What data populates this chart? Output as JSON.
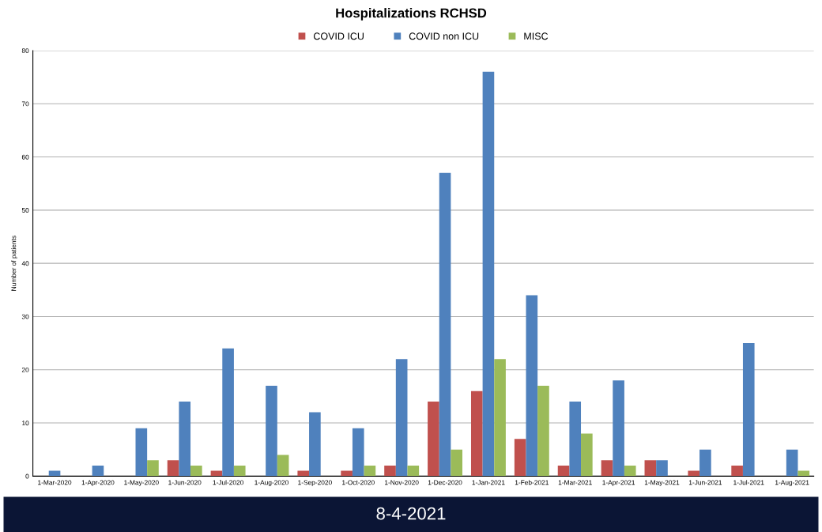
{
  "chart_data": {
    "type": "bar",
    "title": "Hospitalizations RCHSD",
    "ylabel": "Number of patients",
    "categories": [
      "1-Mar-2020",
      "1-Apr-2020",
      "1-May-2020",
      "1-Jun-2020",
      "1-Jul-2020",
      "1-Aug-2020",
      "1-Sep-2020",
      "1-Oct-2020",
      "1-Nov-2020",
      "1-Dec-2020",
      "1-Jan-2021",
      "1-Feb-2021",
      "1-Mar-2021",
      "1-Apr-2021",
      "1-May-2021",
      "1-Jun-2021",
      "1-Jul-2021",
      "1-Aug-2021"
    ],
    "series": [
      {
        "name": "COVID ICU",
        "color": "#c0504d",
        "values": [
          0,
          0,
          0,
          3,
          1,
          0,
          1,
          1,
          2,
          14,
          16,
          7,
          2,
          3,
          3,
          1,
          2,
          0
        ]
      },
      {
        "name": "COVID non ICU",
        "color": "#4f81bd",
        "values": [
          1,
          2,
          9,
          14,
          24,
          17,
          12,
          9,
          22,
          57,
          76,
          34,
          14,
          18,
          3,
          5,
          25,
          5
        ]
      },
      {
        "name": "MISC",
        "color": "#9bbb59",
        "values": [
          0,
          0,
          3,
          2,
          2,
          4,
          0,
          2,
          2,
          5,
          22,
          17,
          8,
          2,
          0,
          0,
          0,
          1
        ]
      }
    ],
    "ylim": [
      0,
      80
    ],
    "yticks": [
      0,
      10,
      20,
      30,
      40,
      50,
      60,
      70,
      80
    ],
    "grid": "y",
    "legend": "top",
    "annotations": [
      "8-4-2021"
    ]
  }
}
